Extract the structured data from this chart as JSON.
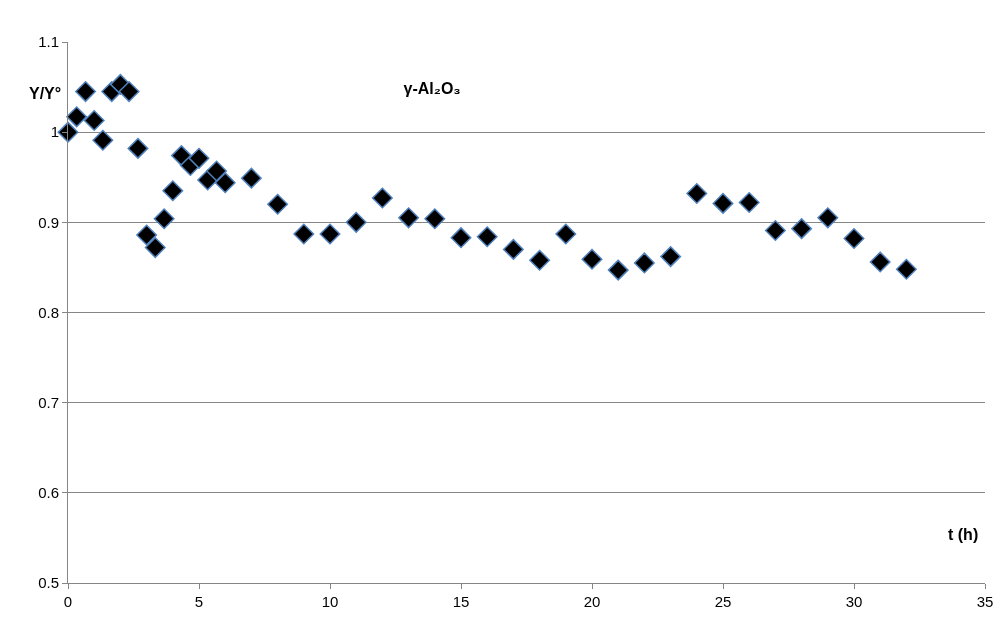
{
  "chart_data": {
    "type": "scatter",
    "title": "γ-Al₂O₃",
    "xlabel": "t (h)",
    "ylabel": "Y/Y°",
    "x": [
      0,
      0.33,
      0.67,
      1,
      1.33,
      1.67,
      2,
      2.33,
      2.67,
      3,
      3.33,
      3.67,
      4,
      4.33,
      4.67,
      5,
      5.33,
      5.67,
      6,
      7,
      8,
      9,
      10,
      11,
      12,
      13,
      14,
      15,
      16,
      17,
      18,
      19,
      20,
      21,
      22,
      23,
      24,
      25,
      26,
      27,
      28,
      29,
      30,
      31,
      32
    ],
    "series": [
      {
        "color": "#000000",
        "values": [
          1.0,
          1.017,
          1.045,
          1.013,
          0.991,
          1.045,
          1.053,
          1.045,
          0.982,
          0.886,
          0.872,
          0.904,
          0.935,
          0.974,
          0.963,
          0.971,
          0.947,
          0.957,
          0.944,
          0.949,
          0.92,
          0.887,
          0.887,
          0.9,
          0.927,
          0.905,
          0.904,
          0.883,
          0.884,
          0.87,
          0.858,
          0.887,
          0.859,
          0.847,
          0.855,
          0.862,
          0.932,
          0.921,
          0.922,
          0.891,
          0.893,
          0.905,
          0.882,
          0.856,
          0.848
        ]
      }
    ],
    "xlim": [
      0,
      35
    ],
    "xticks": [
      0,
      5,
      10,
      15,
      20,
      25,
      30,
      35
    ],
    "ylim": [
      0.5,
      1.1
    ],
    "yticks": [
      0.5,
      0.6,
      0.7,
      0.8,
      0.9,
      1,
      1.1
    ],
    "grid": "y",
    "legend": false,
    "marker": "diamond"
  }
}
